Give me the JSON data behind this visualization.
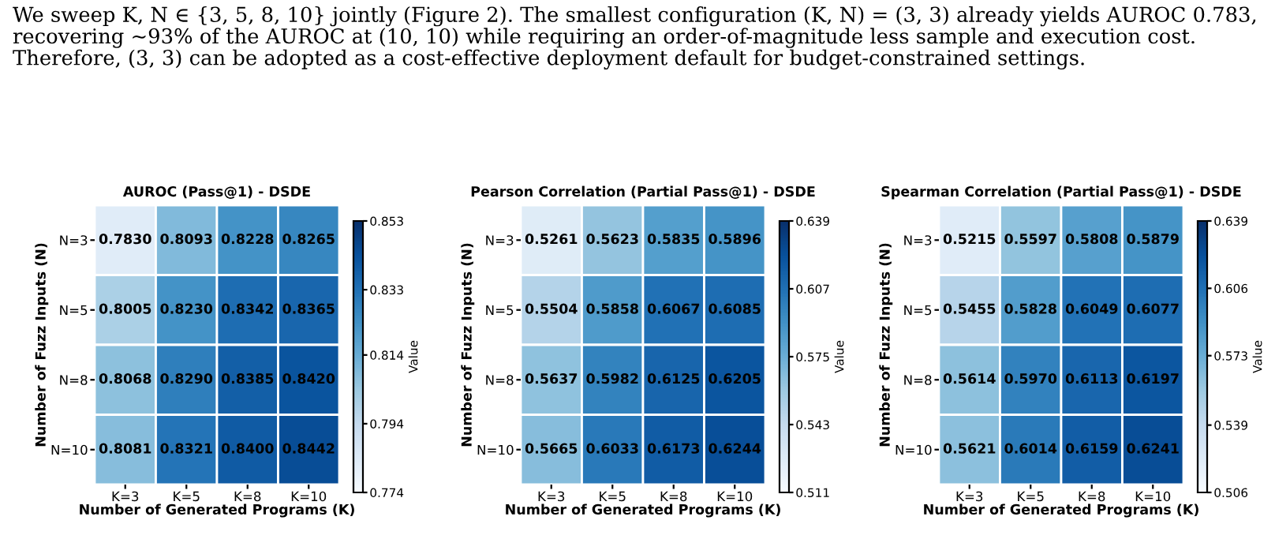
{
  "chart_data": [
    {
      "type": "heatmap",
      "title": "AUROC (Pass@1) - DSDE",
      "xlabel": "Number of Generated Programs (K)",
      "ylabel": "Number of Fuzz Inputs (N)",
      "clabel": "Value",
      "categories": [
        "K=3",
        "K=5",
        "K=8",
        "K=10"
      ],
      "y_categories": [
        "N=3",
        "N=5",
        "N=8",
        "N=10"
      ],
      "cells": [
        [
          0.783,
          0.8093,
          0.8228,
          0.8265
        ],
        [
          0.8005,
          0.823,
          0.8342,
          0.8365
        ],
        [
          0.8068,
          0.829,
          0.8385,
          0.842
        ],
        [
          0.8081,
          0.8321,
          0.84,
          0.8442
        ]
      ],
      "cell_labels": [
        [
          "0.7830",
          "0.8093",
          "0.8228",
          "0.8265"
        ],
        [
          "0.8005",
          "0.8230",
          "0.8342",
          "0.8365"
        ],
        [
          "0.8068",
          "0.8290",
          "0.8385",
          "0.8420"
        ],
        [
          "0.8081",
          "0.8321",
          "0.8400",
          "0.8442"
        ]
      ],
      "clim": [
        0.774,
        0.853
      ],
      "cticks": [
        0.774,
        0.794,
        0.814,
        0.833,
        0.853
      ],
      "annotations": [
        "We sweep K, N ∈ {3, 5, 8, 10} jointly (Figure 2). The smallest configuration (K, N) = (3, 3) already yields AUROC 0.783, recovering ∼93% of the AUROC at (10, 10) while requiring an order-of-magnitude less sample and execution cost. Therefore, (3, 3) can be adopted as a cost-effective deployment default for budget-constrained settings."
      ]
    },
    {
      "type": "heatmap",
      "title": "Pearson Correlation (Partial Pass@1) - DSDE",
      "xlabel": "Number of Generated Programs (K)",
      "ylabel": "Number of Fuzz Inputs (N)",
      "clabel": "Value",
      "categories": [
        "K=3",
        "K=5",
        "K=8",
        "K=10"
      ],
      "y_categories": [
        "N=3",
        "N=5",
        "N=8",
        "N=10"
      ],
      "cells": [
        [
          0.5261,
          0.5623,
          0.5835,
          0.5896
        ],
        [
          0.5504,
          0.5858,
          0.6067,
          0.6085
        ],
        [
          0.5637,
          0.5982,
          0.6125,
          0.6205
        ],
        [
          0.5665,
          0.6033,
          0.6173,
          0.6244
        ]
      ],
      "cell_labels": [
        [
          "0.5261",
          "0.5623",
          "0.5835",
          "0.5896"
        ],
        [
          "0.5504",
          "0.5858",
          "0.6067",
          "0.6085"
        ],
        [
          "0.5637",
          "0.5982",
          "0.6125",
          "0.6205"
        ],
        [
          "0.5665",
          "0.6033",
          "0.6173",
          "0.6244"
        ]
      ],
      "clim": [
        0.511,
        0.639
      ],
      "cticks": [
        0.511,
        0.543,
        0.575,
        0.607,
        0.639
      ]
    },
    {
      "type": "heatmap",
      "title": "Spearman Correlation (Partial Pass@1) - DSDE",
      "xlabel": "Number of Generated Programs (K)",
      "ylabel": "Number of Fuzz Inputs (N)",
      "clabel": "Value",
      "categories": [
        "K=3",
        "K=5",
        "K=8",
        "K=10"
      ],
      "y_categories": [
        "N=3",
        "N=5",
        "N=8",
        "N=10"
      ],
      "cells": [
        [
          0.5215,
          0.5597,
          0.5808,
          0.5879
        ],
        [
          0.5455,
          0.5828,
          0.6049,
          0.6077
        ],
        [
          0.5614,
          0.597,
          0.6113,
          0.6197
        ],
        [
          0.5621,
          0.6014,
          0.6159,
          0.6241
        ]
      ],
      "cell_labels": [
        [
          "0.5215",
          "0.5597",
          "0.5808",
          "0.5879"
        ],
        [
          "0.5455",
          "0.5828",
          "0.6049",
          "0.6077"
        ],
        [
          "0.5614",
          "0.5970",
          "0.6113",
          "0.6197"
        ],
        [
          "0.5621",
          "0.6014",
          "0.6159",
          "0.6241"
        ]
      ],
      "clim": [
        0.506,
        0.639
      ],
      "cticks": [
        0.506,
        0.539,
        0.573,
        0.606,
        0.639
      ]
    }
  ]
}
